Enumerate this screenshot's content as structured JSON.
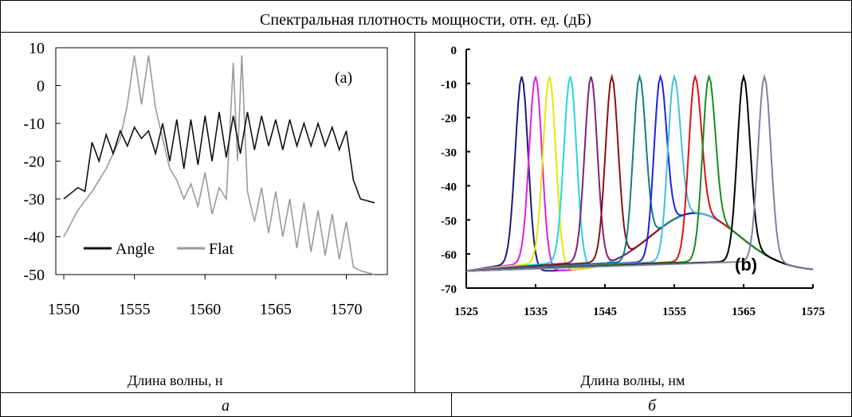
{
  "header": {
    "title": "Спектральная плотность мощности, отн. ед. (дБ)"
  },
  "panel_a": {
    "xlabel": "Длина волны, н",
    "caption": "а"
  },
  "panel_b": {
    "xlabel": "Длина волны, нм",
    "caption": "б"
  },
  "chart_data": [
    {
      "type": "line",
      "panel_label": "(a)",
      "xlim": [
        1550,
        1572
      ],
      "ylim": [
        -50,
        10
      ],
      "xticks": [
        1550,
        1555,
        1560,
        1565,
        1570
      ],
      "yticks": [
        10,
        0,
        -10,
        -20,
        -30,
        -40,
        -50
      ],
      "legend_position": "bottom-left",
      "series": [
        {
          "name": "Angle",
          "color": "#111111",
          "x": [
            1550,
            1551,
            1551.5,
            1552,
            1552.5,
            1553,
            1553.5,
            1554,
            1554.5,
            1555,
            1555.5,
            1556,
            1556.5,
            1557,
            1557.5,
            1558,
            1558.5,
            1559,
            1559.5,
            1560,
            1560.5,
            1561,
            1561.5,
            1562,
            1562.5,
            1563,
            1563.5,
            1564,
            1564.5,
            1565,
            1565.5,
            1566,
            1566.5,
            1567,
            1567.5,
            1568,
            1568.5,
            1569,
            1569.5,
            1570,
            1570.5,
            1571,
            1572
          ],
          "y": [
            -30,
            -27,
            -28,
            -15,
            -20,
            -13,
            -18,
            -12,
            -16,
            -11,
            -14,
            -12,
            -18,
            -10,
            -20,
            -9,
            -22,
            -9,
            -21,
            -8,
            -20,
            -7,
            -19,
            -8,
            -18,
            -7,
            -17,
            -8,
            -16,
            -9,
            -17,
            -9,
            -16,
            -10,
            -16,
            -10,
            -16,
            -11,
            -17,
            -12,
            -25,
            -30,
            -31
          ]
        },
        {
          "name": "Flat",
          "color": "#9a9a9a",
          "x": [
            1550,
            1551,
            1552,
            1553,
            1554,
            1554.5,
            1555,
            1555.5,
            1556,
            1556.5,
            1557,
            1557.5,
            1558,
            1558.5,
            1559,
            1559.5,
            1560,
            1560.5,
            1561,
            1561.5,
            1562,
            1562.3,
            1562.6,
            1563,
            1563.5,
            1564,
            1564.5,
            1565,
            1565.5,
            1566,
            1566.5,
            1567,
            1567.5,
            1568,
            1568.5,
            1569,
            1569.5,
            1570,
            1570.5,
            1571,
            1572
          ],
          "y": [
            -40,
            -33,
            -28,
            -22,
            -14,
            -5,
            8,
            -5,
            8,
            -6,
            -14,
            -22,
            -25,
            -30,
            -26,
            -32,
            -23,
            -34,
            -27,
            -30,
            6,
            -20,
            8,
            -28,
            -36,
            -27,
            -39,
            -28,
            -40,
            -30,
            -43,
            -31,
            -44,
            -33,
            -45,
            -34,
            -46,
            -36,
            -48,
            -49,
            -50
          ]
        }
      ]
    },
    {
      "type": "line",
      "panel_label": "(b)",
      "xlim": [
        1525,
        1575
      ],
      "ylim": [
        -70,
        0
      ],
      "xticks": [
        1525,
        1535,
        1545,
        1555,
        1565,
        1575
      ],
      "yticks": [
        0,
        -10,
        -20,
        -30,
        -40,
        -50,
        -60,
        -70
      ],
      "series": [
        {
          "color": "#1a1a7a",
          "peak_x": 1533,
          "peak_y": -8
        },
        {
          "color": "#e020e0",
          "peak_x": 1535,
          "peak_y": -8
        },
        {
          "color": "#e8e800",
          "peak_x": 1537,
          "peak_y": -8
        },
        {
          "color": "#20d8e0",
          "peak_x": 1540,
          "peak_y": -8
        },
        {
          "color": "#802080",
          "peak_x": 1543,
          "peak_y": -8
        },
        {
          "color": "#8a1010",
          "peak_x": 1546,
          "peak_y": -8
        },
        {
          "color": "#108080",
          "peak_x": 1550,
          "peak_y": -8
        },
        {
          "color": "#2020e0",
          "peak_x": 1553,
          "peak_y": -8
        },
        {
          "color": "#40c0e0",
          "peak_x": 1555,
          "peak_y": -8
        },
        {
          "color": "#e01010",
          "peak_x": 1558,
          "peak_y": -8
        },
        {
          "color": "#109020",
          "peak_x": 1560,
          "peak_y": -8
        },
        {
          "color": "#000000",
          "peak_x": 1565,
          "peak_y": -8
        },
        {
          "color": "#8080a0",
          "peak_x": 1568,
          "peak_y": -8
        }
      ]
    }
  ]
}
